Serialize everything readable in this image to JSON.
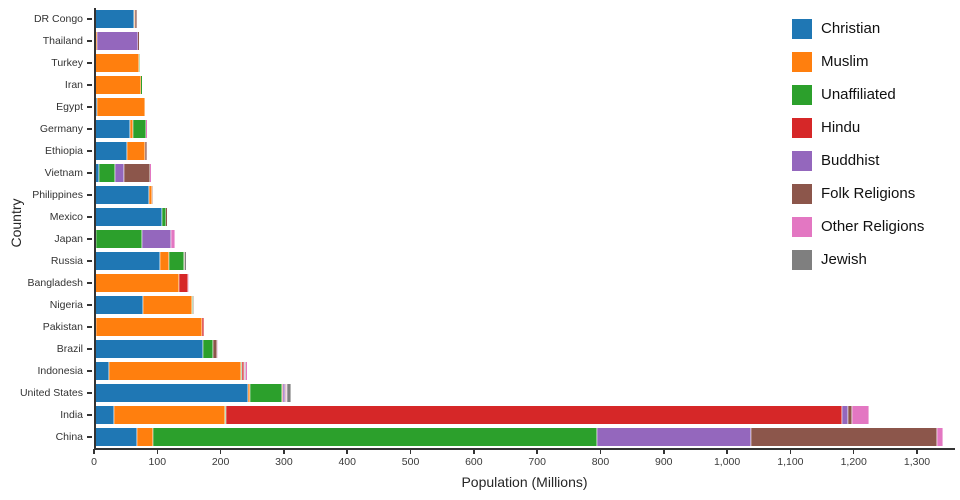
{
  "chart_data": {
    "type": "bar",
    "orientation": "horizontal",
    "stacked": true,
    "xlabel": "Population (Millions)",
    "ylabel": "Country",
    "xmax": 1360,
    "grid": false,
    "legend_position": "top-right",
    "xticks": [
      {
        "value": 0,
        "label": "0"
      },
      {
        "value": 100,
        "label": "100"
      },
      {
        "value": 200,
        "label": "200"
      },
      {
        "value": 300,
        "label": "300"
      },
      {
        "value": 400,
        "label": "400"
      },
      {
        "value": 500,
        "label": "500"
      },
      {
        "value": 600,
        "label": "600"
      },
      {
        "value": 700,
        "label": "700"
      },
      {
        "value": 800,
        "label": "800"
      },
      {
        "value": 900,
        "label": "900"
      },
      {
        "value": 1000,
        "label": "1,000"
      },
      {
        "value": 1100,
        "label": "1,100"
      },
      {
        "value": 1200,
        "label": "1,200"
      },
      {
        "value": 1300,
        "label": "1,300"
      }
    ],
    "categories": [
      "DR Congo",
      "Thailand",
      "Turkey",
      "Iran",
      "Egypt",
      "Germany",
      "Ethiopia",
      "Vietnam",
      "Philippines",
      "Mexico",
      "Japan",
      "Russia",
      "Bangladesh",
      "Nigeria",
      "Pakistan",
      "Brazil",
      "Indonesia",
      "United States",
      "India",
      "China"
    ],
    "series": [
      {
        "name": "Christian",
        "color": "#1f77b4",
        "values": [
          63.2,
          0.6,
          0.3,
          0.1,
          4.1,
          56.5,
          52.1,
          7.5,
          86.4,
          107.8,
          2.9,
          104.7,
          0.7,
          78.1,
          2.8,
          172.0,
          23.7,
          243.1,
          31.1,
          68.4
        ]
      },
      {
        "name": "Muslim",
        "color": "#ff7f0e",
        "values": [
          1.0,
          3.8,
          71.3,
          73.6,
          76.8,
          4.8,
          28.7,
          0.2,
          4.7,
          0.1,
          0.2,
          14.3,
          133.5,
          77.3,
          167.4,
          0.2,
          209.1,
          2.8,
          176.2,
          24.7
        ]
      },
      {
        "name": "Unaffiliated",
        "color": "#2ca02c",
        "values": [
          1.3,
          0.3,
          0.9,
          0.2,
          0.1,
          20.4,
          0.4,
          26.0,
          0.1,
          5.3,
          72.1,
          23.2,
          0.1,
          0.7,
          0.1,
          15.4,
          0.2,
          50.8,
          0.9,
          700.7
        ]
      },
      {
        "name": "Hindu",
        "color": "#d62728",
        "values": [
          0,
          0.1,
          0,
          0,
          0,
          0.1,
          0,
          0.1,
          0,
          0,
          0,
          0,
          13.5,
          0,
          3.3,
          0,
          4.1,
          1.8,
          973.8,
          0.1
        ]
      },
      {
        "name": "Buddhist",
        "color": "#9467bd",
        "values": [
          0,
          64.4,
          0,
          0,
          0,
          0.3,
          0,
          14.4,
          0,
          0,
          45.8,
          0.7,
          0.8,
          0,
          0,
          0.5,
          1.7,
          3.6,
          9.3,
          244.1
        ]
      },
      {
        "name": "Folk Religions",
        "color": "#8c564b",
        "values": [
          1.7,
          0.4,
          0,
          0,
          0,
          0.1,
          2.3,
          39.8,
          1.4,
          1.1,
          0.5,
          0.2,
          0.7,
          1.4,
          0,
          5.5,
          0.7,
          1.5,
          5.8,
          294.3
        ]
      },
      {
        "name": "Other Religions",
        "color": "#e377c2",
        "values": [
          0,
          0.1,
          0.1,
          0.1,
          0,
          0.2,
          0,
          1.0,
          0.1,
          0.1,
          6.0,
          0.1,
          0.1,
          0.1,
          0,
          3.0,
          0.4,
          1.9,
          27.6,
          9.1
        ]
      },
      {
        "name": "Jewish",
        "color": "#7f7f7f",
        "values": [
          0,
          0,
          0,
          0,
          0,
          0.1,
          0,
          0,
          0,
          0,
          0,
          0.2,
          0,
          0,
          0,
          0.1,
          0,
          5.7,
          0,
          0
        ]
      }
    ]
  }
}
